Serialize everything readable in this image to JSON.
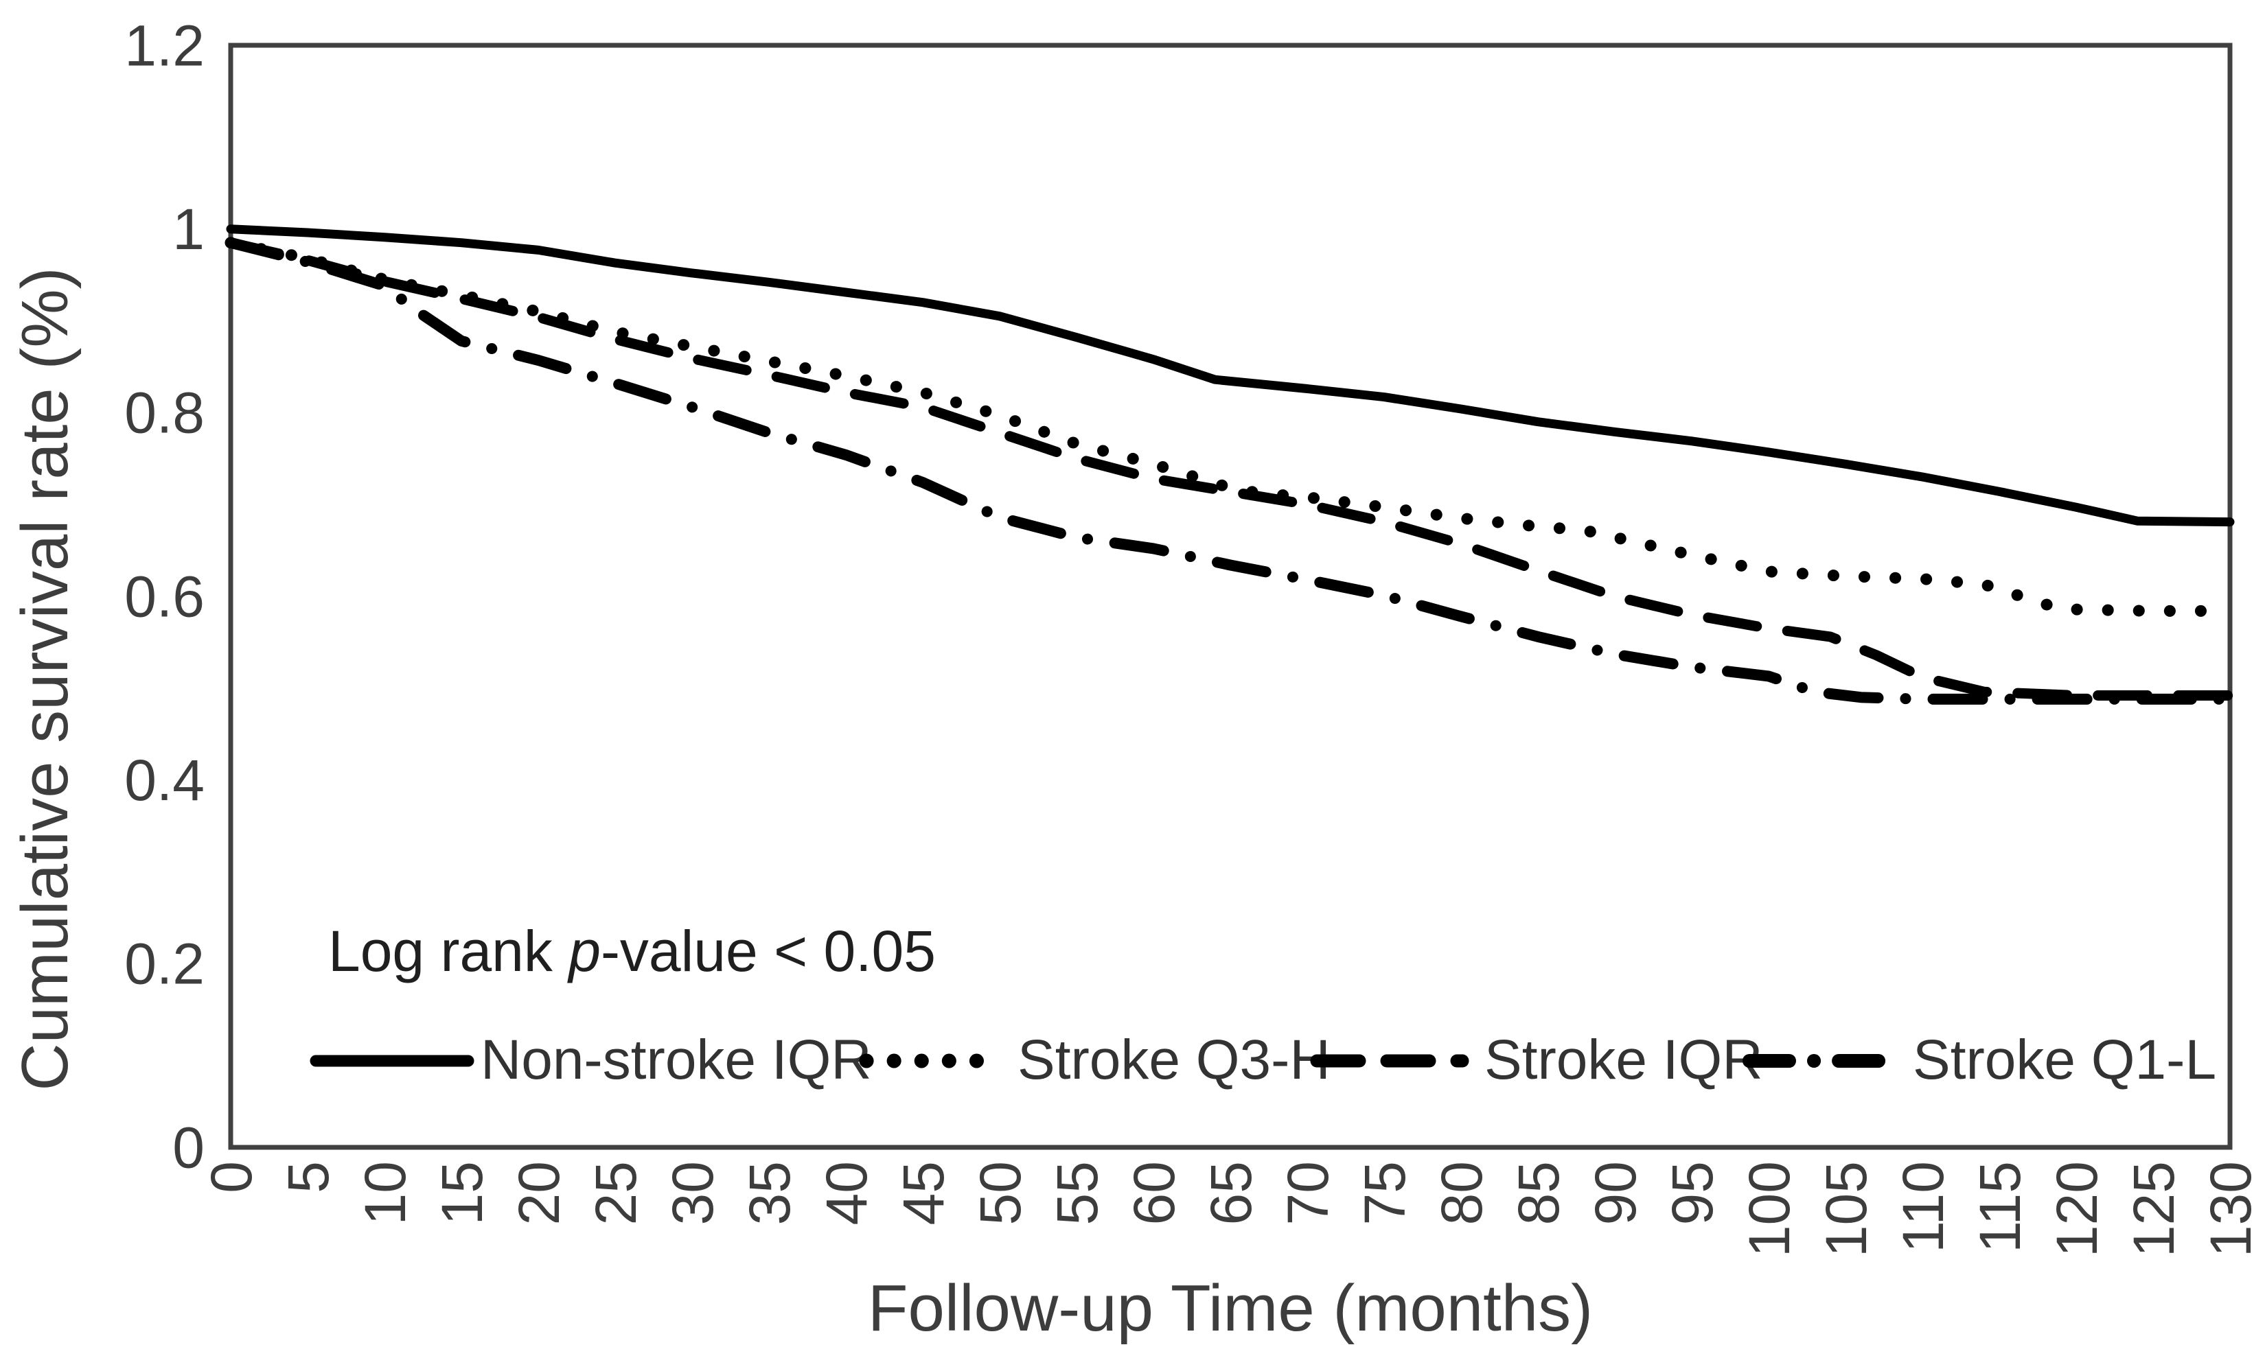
{
  "figure": {
    "background": "#ffffff",
    "frame_color": "#404040",
    "curve_color": "#000000",
    "text_color": "#3d3d3d",
    "annotation_color": "#1f1f1f"
  },
  "chart_data": {
    "type": "line",
    "title": "",
    "xlabel": "Follow-up Time (months)",
    "ylabel": "Cumulative survival rate (%)",
    "xlim": [
      0,
      130
    ],
    "ylim": [
      0,
      1.2
    ],
    "grid": false,
    "legend_position": "bottom-inside",
    "x_tick_labels": [
      "0",
      "5",
      "10",
      "15",
      "20",
      "25",
      "30",
      "35",
      "40",
      "45",
      "50",
      "55",
      "60",
      "65",
      "70",
      "75",
      "80",
      "85",
      "90",
      "95",
      "100",
      "105",
      "110",
      "115",
      "120",
      "125",
      "130"
    ],
    "x_tick_values": [
      0,
      5,
      10,
      15,
      20,
      25,
      30,
      35,
      40,
      45,
      50,
      55,
      60,
      65,
      70,
      75,
      80,
      85,
      90,
      95,
      100,
      105,
      110,
      115,
      120,
      125,
      130
    ],
    "y_tick_labels": [
      "0",
      "0.2",
      "0.4",
      "0.6",
      "0.8",
      "1",
      "1.2"
    ],
    "y_tick_values": [
      0,
      0.2,
      0.4,
      0.6,
      0.8,
      1,
      1.2
    ],
    "annotation": "Log rank p-value < 0.05",
    "annotation_parts": {
      "prefix": "Log rank ",
      "italic": "p",
      "suffix": "-value < 0.05"
    },
    "series": [
      {
        "name": "Non-stroke IQR",
        "style": "solid",
        "x": [
          0,
          5,
          10,
          15,
          20,
          25,
          30,
          35,
          40,
          45,
          50,
          55,
          60,
          64,
          70,
          75,
          80,
          85,
          90,
          95,
          100,
          105,
          110,
          115,
          120,
          124,
          130
        ],
        "y": [
          1.0,
          0.996,
          0.991,
          0.985,
          0.977,
          0.963,
          0.952,
          0.942,
          0.931,
          0.92,
          0.905,
          0.882,
          0.858,
          0.836,
          0.826,
          0.817,
          0.804,
          0.79,
          0.779,
          0.769,
          0.757,
          0.744,
          0.73,
          0.714,
          0.697,
          0.682,
          0.681
        ]
      },
      {
        "name": "Stroke Q3-H",
        "style": "dotted",
        "x": [
          0,
          5,
          10,
          15,
          20,
          25,
          30,
          35,
          40,
          45,
          50,
          55,
          60,
          65,
          67,
          70,
          75,
          80,
          85,
          88,
          95,
          100,
          105,
          110,
          114,
          119,
          125,
          130
        ],
        "y": [
          0.985,
          0.968,
          0.945,
          0.928,
          0.91,
          0.888,
          0.872,
          0.856,
          0.84,
          0.822,
          0.797,
          0.766,
          0.744,
          0.718,
          0.712,
          0.708,
          0.697,
          0.685,
          0.676,
          0.672,
          0.645,
          0.627,
          0.622,
          0.619,
          0.613,
          0.586,
          0.584,
          0.584
        ]
      },
      {
        "name": "Stroke IQR",
        "style": "dashed",
        "x": [
          0,
          5,
          10,
          15,
          20,
          25,
          30,
          35,
          40,
          45,
          50,
          55,
          60,
          65,
          70,
          75,
          80,
          85,
          90,
          95,
          100,
          104,
          107,
          110,
          114,
          120,
          130
        ],
        "y": [
          0.985,
          0.966,
          0.943,
          0.924,
          0.904,
          0.88,
          0.859,
          0.841,
          0.822,
          0.806,
          0.778,
          0.75,
          0.728,
          0.714,
          0.7,
          0.681,
          0.657,
          0.628,
          0.6,
          0.58,
          0.565,
          0.556,
          0.536,
          0.512,
          0.496,
          0.492,
          0.492
        ]
      },
      {
        "name": "Stroke Q1-L",
        "style": "dashdot",
        "x": [
          0,
          5,
          10,
          12,
          15,
          20,
          25,
          30,
          35,
          40,
          45,
          50,
          55,
          60,
          65,
          70,
          75,
          80,
          85,
          90,
          95,
          100,
          103,
          106,
          110,
          120,
          130
        ],
        "y": [
          0.985,
          0.964,
          0.938,
          0.912,
          0.878,
          0.857,
          0.832,
          0.806,
          0.778,
          0.754,
          0.724,
          0.686,
          0.664,
          0.652,
          0.634,
          0.618,
          0.601,
          0.578,
          0.556,
          0.537,
          0.523,
          0.513,
          0.496,
          0.49,
          0.488,
          0.488,
          0.488
        ]
      }
    ]
  }
}
